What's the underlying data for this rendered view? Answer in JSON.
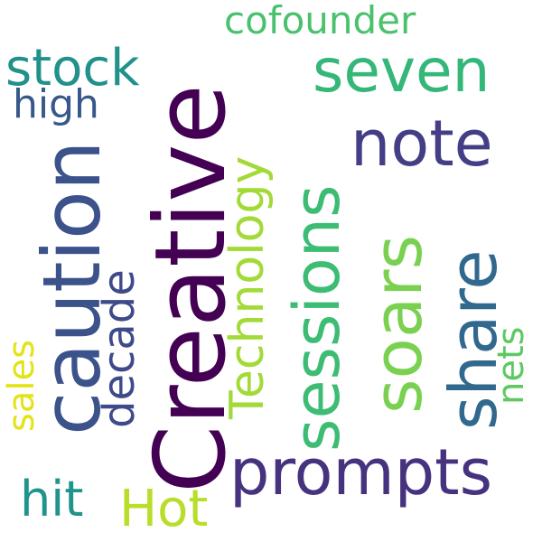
{
  "words": {
    "creative": {
      "text": "Creative",
      "color": "#440154"
    },
    "caution": {
      "text": "caution",
      "color": "#3b528b"
    },
    "prompts": {
      "text": "prompts",
      "color": "#46327e"
    },
    "sessions": {
      "text": "sessions",
      "color": "#3dbc74"
    },
    "soars": {
      "text": "soars",
      "color": "#7ad151"
    },
    "share": {
      "text": "share",
      "color": "#31688e"
    },
    "seven": {
      "text": "seven",
      "color": "#35b779"
    },
    "note": {
      "text": "note",
      "color": "#433e85"
    },
    "technology": {
      "text": "Technology",
      "color": "#a2da37"
    },
    "stock": {
      "text": "stock",
      "color": "#21918c"
    },
    "decade": {
      "text": "decade",
      "color": "#3e4a89"
    },
    "cofounder": {
      "text": "cofounder",
      "color": "#4ac16d"
    },
    "high": {
      "text": "high",
      "color": "#38588c"
    },
    "sales": {
      "text": "sales",
      "color": "#e2e418"
    },
    "nets": {
      "text": "nets",
      "color": "#5ec962"
    },
    "hit": {
      "text": "hit",
      "color": "#1f948c"
    },
    "hot": {
      "text": "Hot",
      "color": "#b8de29"
    }
  }
}
